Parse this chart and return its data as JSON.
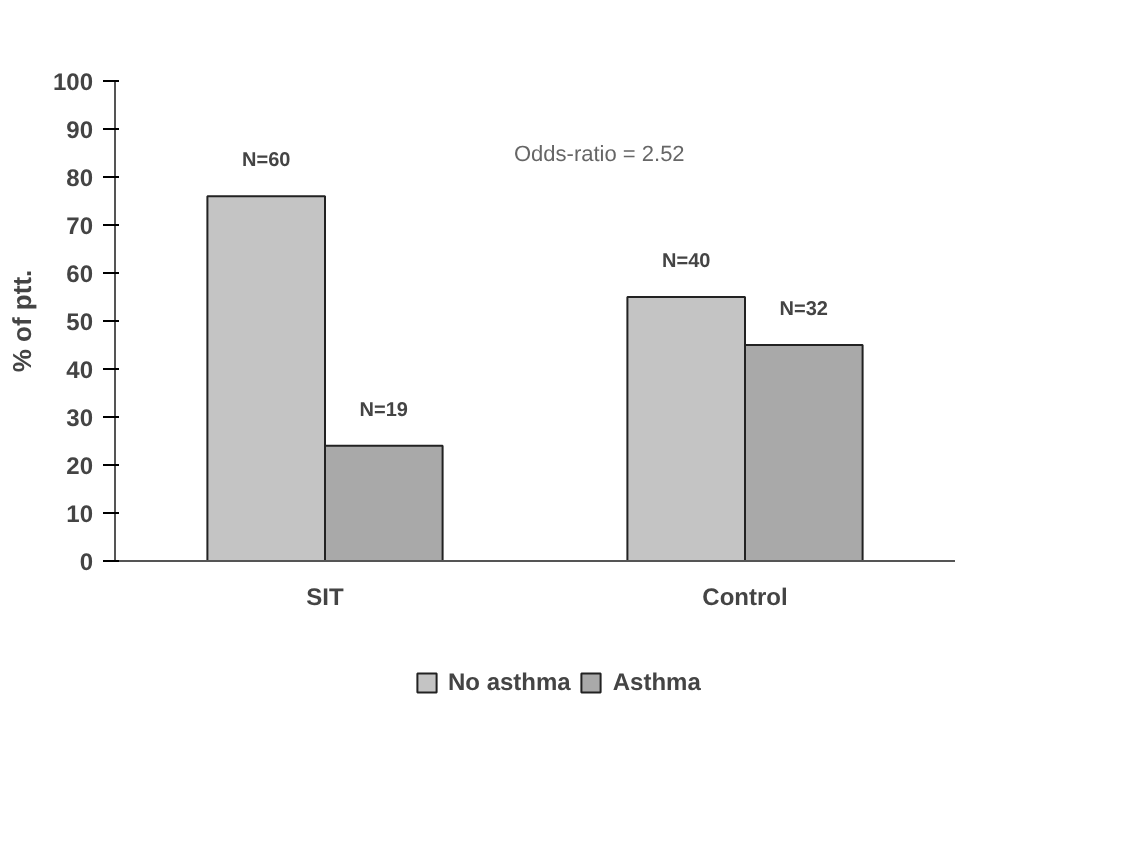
{
  "chart_data": {
    "type": "bar",
    "ylabel": "% of ptt.",
    "categories": [
      "SIT",
      "Control"
    ],
    "series": [
      {
        "name": "No asthma",
        "color": "#c4c4c4",
        "values": [
          76,
          55
        ]
      },
      {
        "name": "Asthma",
        "color": "#a9a9a9",
        "values": [
          24,
          45
        ]
      }
    ],
    "ylim": [
      0,
      100
    ],
    "yticks": [
      0,
      10,
      20,
      30,
      40,
      50,
      60,
      70,
      80,
      90,
      100
    ],
    "legend": "bottom",
    "grid": false,
    "annotations": [
      "Odds-ratio = 2.52",
      {
        "text": "N=60",
        "x": "SIT",
        "y": 76
      },
      {
        "text": "N=19",
        "x": "SIT",
        "y": 24
      },
      {
        "text": "N=40",
        "x": "Control",
        "y": 55
      },
      {
        "text": "N=32",
        "x": "Control",
        "y": 45
      }
    ]
  }
}
